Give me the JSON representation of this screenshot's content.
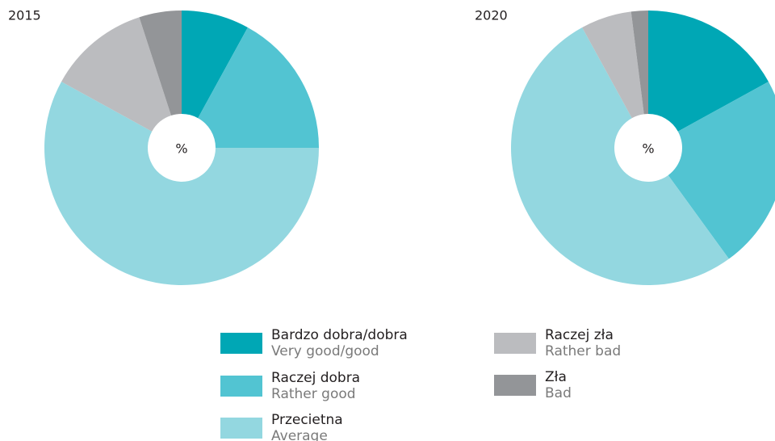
{
  "chart_data": [
    {
      "type": "pie",
      "title": "2015",
      "center_label": "%",
      "values": [
        8,
        17,
        58,
        12,
        5
      ]
    },
    {
      "type": "pie",
      "title": "2020",
      "center_label": "%",
      "values": [
        17,
        23,
        52,
        6,
        2
      ]
    }
  ],
  "legend": {
    "items": [
      {
        "label": "Bardzo dobra/dobra",
        "sublabel": "Very good/good",
        "color": "#00a7b5"
      },
      {
        "label": "Raczej dobra",
        "sublabel": "Rather good",
        "color": "#52c4d2"
      },
      {
        "label": "Przecietna",
        "sublabel": "Average",
        "color": "#93d7e0"
      },
      {
        "label": "Raczej zła",
        "sublabel": "Rather bad",
        "color": "#bbbcbf"
      },
      {
        "label": "Zła",
        "sublabel": "Bad",
        "color": "#939598"
      }
    ]
  }
}
